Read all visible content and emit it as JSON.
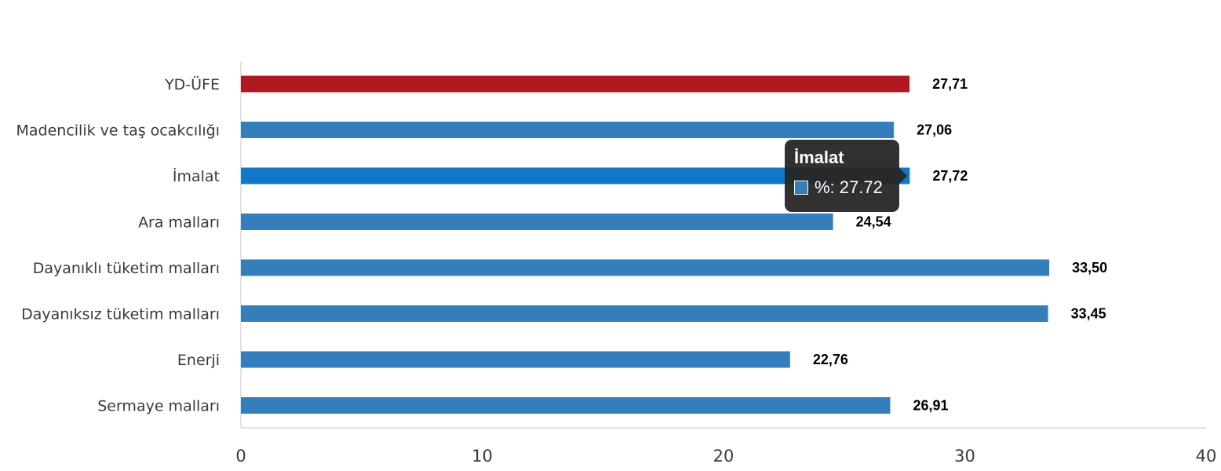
{
  "chart_data": {
    "type": "bar",
    "orientation": "horizontal",
    "categories": [
      "YD-ÜFE",
      "Madencilik ve taş ocakcılığı",
      "İmalat",
      "Ara malları",
      "Dayanıklı tüketim malları",
      "Dayanıksız tüketim malları",
      "Enerji",
      "Sermaye malları"
    ],
    "values": [
      27.71,
      27.06,
      27.72,
      24.54,
      33.5,
      33.45,
      22.76,
      26.91
    ],
    "value_labels": [
      "27,71",
      "27,06",
      "27,72",
      "24,54",
      "33,50",
      "33,45",
      "22,76",
      "26,91"
    ],
    "xlim": [
      0,
      40
    ],
    "xticks": [
      0,
      10,
      20,
      30,
      40
    ],
    "grid": false,
    "colors": {
      "default_bar": "#337ebb",
      "highlight_bar": "#b0181f",
      "hover_bar": "#1177c6"
    },
    "highlight_index": 0,
    "hover_index": 2
  },
  "tooltip": {
    "title": "İmalat",
    "series_label": "%: 27.72",
    "swatch_color": "#337ebb"
  }
}
